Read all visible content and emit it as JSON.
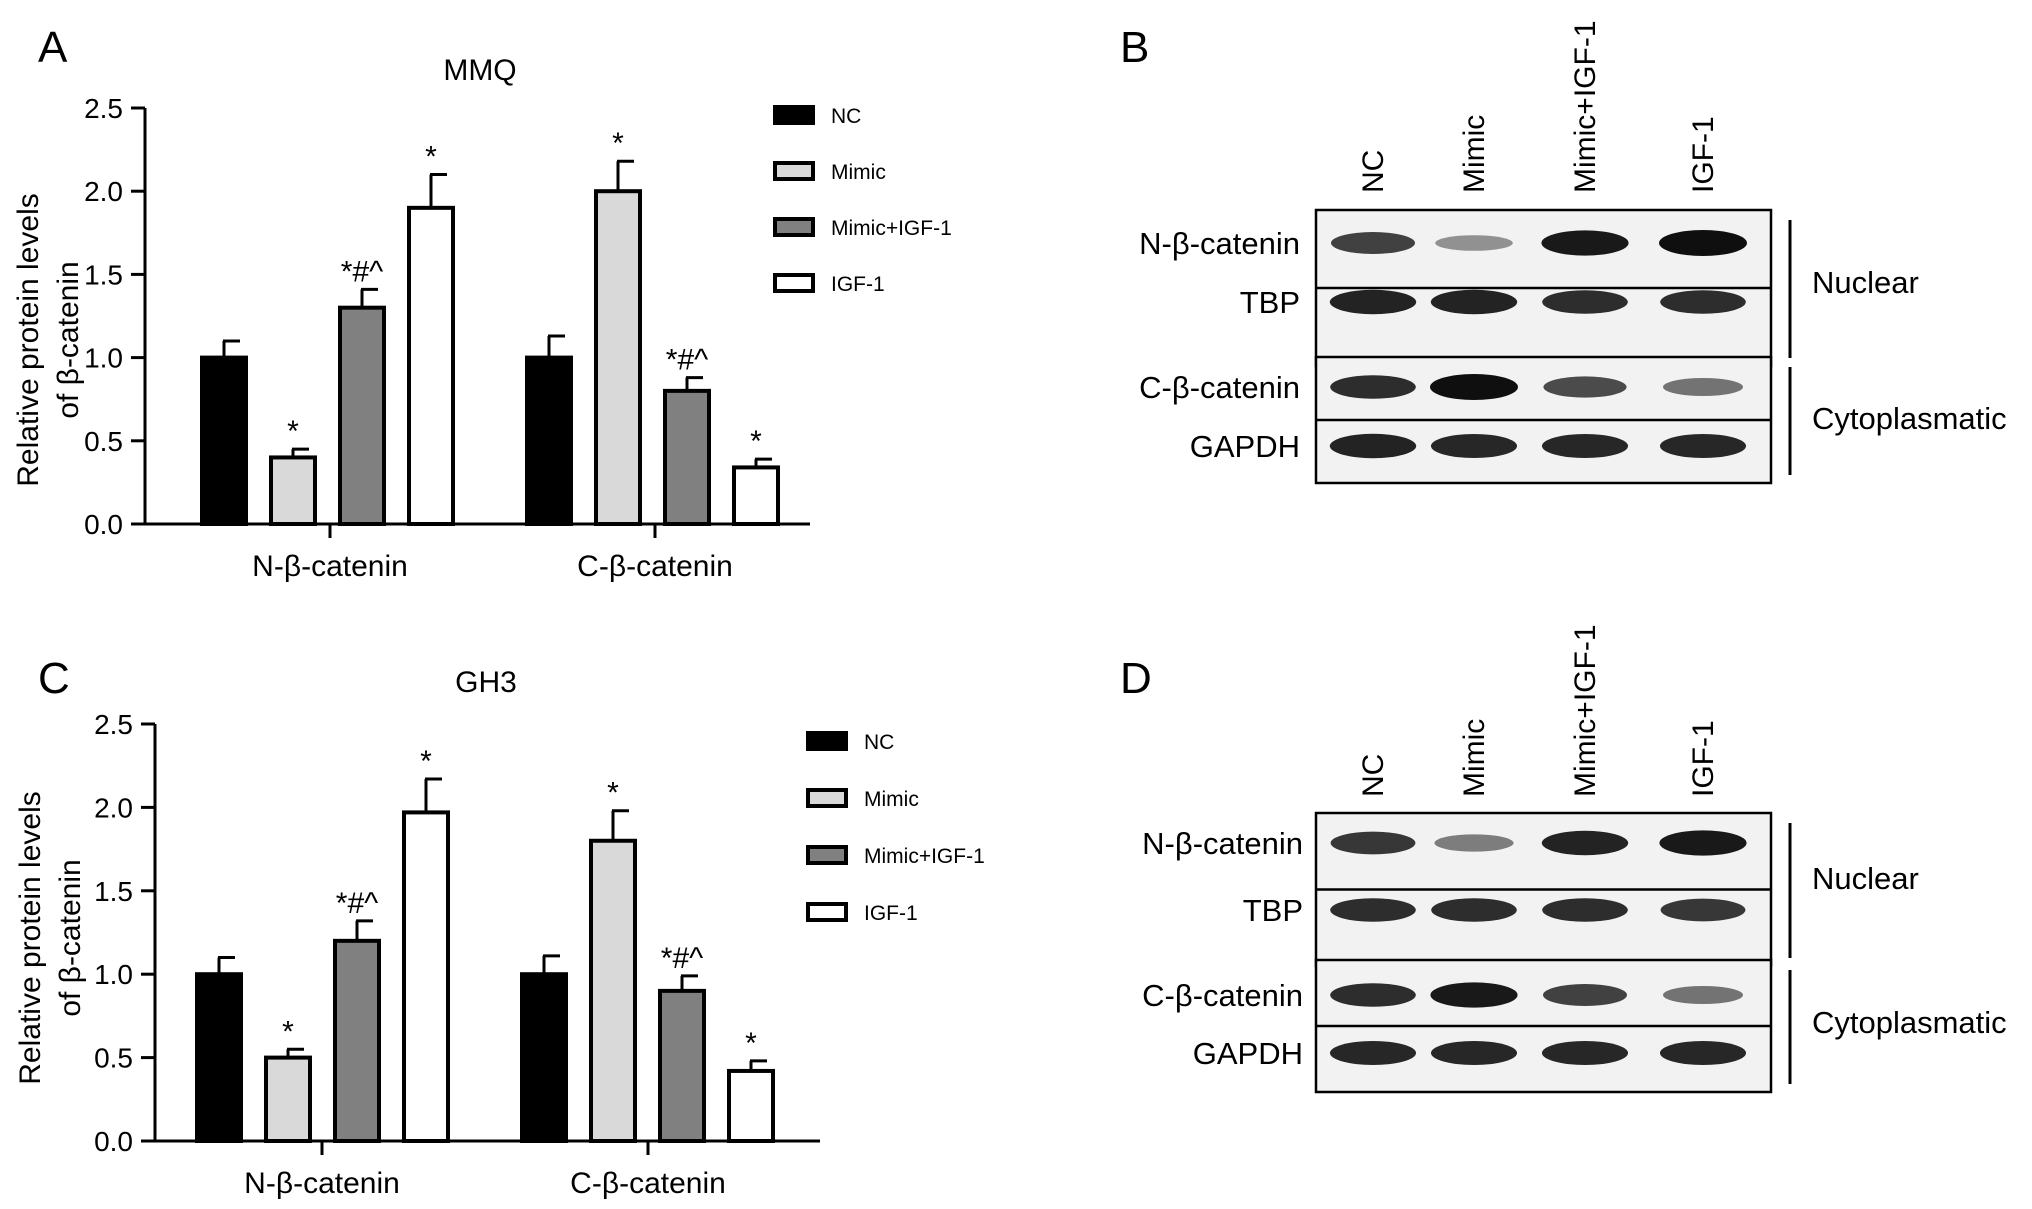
{
  "panel_letters": [
    "A",
    "B",
    "C",
    "D"
  ],
  "chart_data": [
    {
      "type": "bar",
      "panel": "A",
      "title": "MMQ",
      "ylabel_line1": "Relative protein levels",
      "ylabel_line2": "of β-catenin",
      "ylim": [
        0,
        2.5
      ],
      "yticks": [
        "0.0",
        "0.5",
        "1.0",
        "1.5",
        "2.0",
        "2.5"
      ],
      "categories": [
        "N-β-catenin",
        "C-β-catenin"
      ],
      "legend_position": "right",
      "series": [
        {
          "name": "NC",
          "values": [
            1.0,
            1.0
          ],
          "errors": [
            0.1,
            0.13
          ],
          "marks": [
            "",
            ""
          ],
          "color": "#000000"
        },
        {
          "name": "Mimic",
          "values": [
            0.4,
            2.0
          ],
          "errors": [
            0.05,
            0.18
          ],
          "marks": [
            "*",
            "*"
          ],
          "color": "#d9d9d9"
        },
        {
          "name": "Mimic+IGF-1",
          "values": [
            1.3,
            0.8
          ],
          "errors": [
            0.11,
            0.08
          ],
          "marks": [
            "*#^",
            "*#^"
          ],
          "color": "#808080"
        },
        {
          "name": "IGF-1",
          "values": [
            1.9,
            0.34
          ],
          "errors": [
            0.2,
            0.05
          ],
          "marks": [
            "*",
            "*"
          ],
          "color": "#ffffff"
        }
      ]
    },
    {
      "type": "bar",
      "panel": "C",
      "title": "GH3",
      "ylabel_line1": "Relative protein levels",
      "ylabel_line2": "of β-catenin",
      "ylim": [
        0,
        2.5
      ],
      "yticks": [
        "0.0",
        "0.5",
        "1.0",
        "1.5",
        "2.0",
        "2.5"
      ],
      "categories": [
        "N-β-catenin",
        "C-β-catenin"
      ],
      "legend_position": "right",
      "series": [
        {
          "name": "NC",
          "values": [
            1.0,
            1.0
          ],
          "errors": [
            0.1,
            0.11
          ],
          "marks": [
            "",
            ""
          ],
          "color": "#000000"
        },
        {
          "name": "Mimic",
          "values": [
            0.5,
            1.8
          ],
          "errors": [
            0.05,
            0.18
          ],
          "marks": [
            "*",
            "*"
          ],
          "color": "#d9d9d9"
        },
        {
          "name": "Mimic+IGF-1",
          "values": [
            1.2,
            0.9
          ],
          "errors": [
            0.12,
            0.09
          ],
          "marks": [
            "*#^",
            "*#^"
          ],
          "color": "#808080"
        },
        {
          "name": "IGF-1",
          "values": [
            1.97,
            0.42
          ],
          "errors": [
            0.2,
            0.06
          ],
          "marks": [
            "*",
            "*"
          ],
          "color": "#ffffff"
        }
      ]
    }
  ],
  "blots": [
    {
      "panel": "B",
      "lanes": [
        "NC",
        "Mimic",
        "Mimic+IGF-1",
        "IGF-1"
      ],
      "groups": [
        {
          "name": "Nuclear",
          "rows": [
            {
              "label": "N-β-catenin",
              "intensities": [
                0.75,
                0.35,
                0.95,
                1.0
              ]
            },
            {
              "label": "TBP",
              "intensities": [
                0.9,
                0.9,
                0.85,
                0.85
              ]
            }
          ]
        },
        {
          "name": "Cytoplasmatic",
          "rows": [
            {
              "label": "C-β-catenin",
              "intensities": [
                0.85,
                1.0,
                0.7,
                0.5
              ]
            },
            {
              "label": "GAPDH",
              "intensities": [
                0.9,
                0.88,
                0.88,
                0.88
              ]
            }
          ]
        }
      ]
    },
    {
      "panel": "D",
      "lanes": [
        "NC",
        "Mimic",
        "Mimic+IGF-1",
        "IGF-1"
      ],
      "groups": [
        {
          "name": "Nuclear",
          "rows": [
            {
              "label": "N-β-catenin",
              "intensities": [
                0.8,
                0.45,
                0.9,
                0.95
              ]
            },
            {
              "label": "TBP",
              "intensities": [
                0.85,
                0.85,
                0.85,
                0.8
              ]
            }
          ]
        },
        {
          "name": "Cytoplasmatic",
          "rows": [
            {
              "label": "C-β-catenin",
              "intensities": [
                0.85,
                0.95,
                0.75,
                0.5
              ]
            },
            {
              "label": "GAPDH",
              "intensities": [
                0.88,
                0.88,
                0.88,
                0.88
              ]
            }
          ]
        }
      ]
    }
  ]
}
